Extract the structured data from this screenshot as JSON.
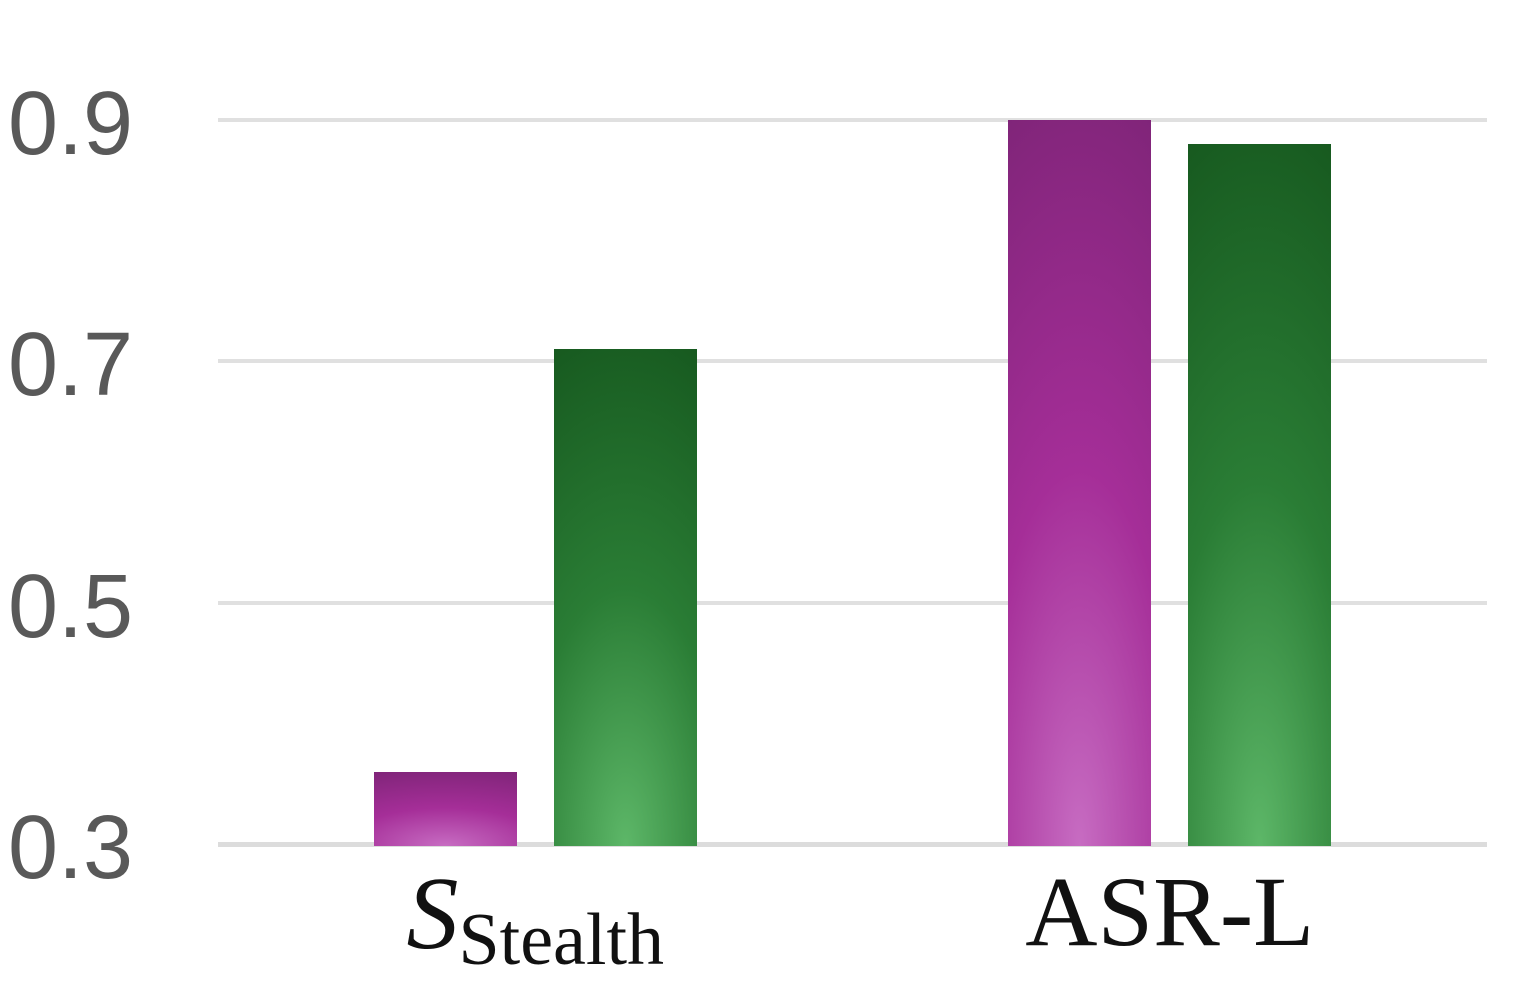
{
  "chart_data": {
    "type": "bar",
    "title": "",
    "xlabel": "",
    "ylabel": "",
    "categories": [
      {
        "main": "S",
        "subscript": "Stealth",
        "italic_main": true
      },
      {
        "main": "ASR-L",
        "subscript": "",
        "italic_main": false
      }
    ],
    "series": [
      {
        "name": "purple-series",
        "values": [
          0.36,
          0.9
        ],
        "color_top": "#7a2374",
        "color_mid": "#a52e98",
        "color_bottom": "#c76cc2"
      },
      {
        "name": "green-series",
        "values": [
          0.71,
          0.88
        ],
        "color_top": "#14541c",
        "color_mid": "#2a7d35",
        "color_bottom": "#5db768"
      }
    ],
    "yticks": [
      {
        "label": "0.9",
        "value": 0.9
      },
      {
        "label": "0.7",
        "value": 0.7
      },
      {
        "label": "0.5",
        "value": 0.5
      },
      {
        "label": "0.3",
        "value": 0.3
      }
    ],
    "ylim": [
      0.3,
      0.9
    ],
    "grid": true,
    "legend": false,
    "background_color": "#ffffff",
    "gridline_color": "#e0e0e0",
    "ytick_label_color": "#595959",
    "xtick_label_color": "#111111"
  }
}
